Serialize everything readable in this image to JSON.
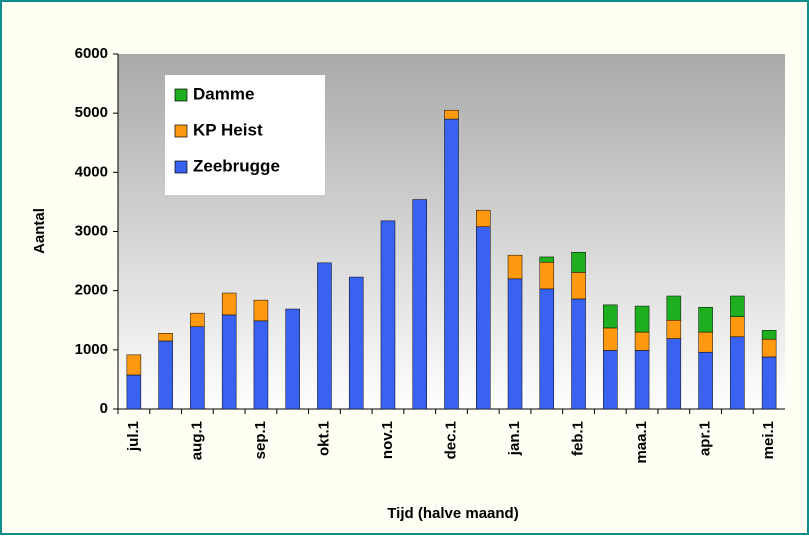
{
  "chart_data": {
    "type": "stacked_bar",
    "ylabel": "Aantal",
    "xlabel": "Tijd (halve maand)",
    "categories": [
      "jul.1",
      null,
      "aug.1",
      null,
      "sep.1",
      null,
      "okt.1",
      null,
      "nov.1",
      null,
      "dec.1",
      null,
      "jan.1",
      null,
      "feb.1",
      null,
      "maa.1",
      null,
      "apr.1",
      null,
      "mei.1"
    ],
    "series": [
      {
        "name": "Zeebrugge",
        "color": "#3a62f0",
        "values": [
          575,
          1150,
          1390,
          1590,
          1490,
          1690,
          2470,
          2230,
          3180,
          3540,
          4900,
          3080,
          2200,
          2030,
          1860,
          990,
          990,
          1190,
          960,
          1220,
          880
        ]
      },
      {
        "name": "KP Heist",
        "color": "#ff9a10",
        "values": [
          340,
          130,
          230,
          370,
          350,
          0,
          0,
          0,
          0,
          0,
          150,
          280,
          400,
          450,
          450,
          380,
          310,
          310,
          340,
          340,
          300
        ]
      },
      {
        "name": "Damme",
        "color": "#1fae1f",
        "values": [
          0,
          0,
          0,
          0,
          0,
          0,
          0,
          0,
          0,
          0,
          0,
          0,
          0,
          90,
          340,
          390,
          440,
          410,
          420,
          350,
          150
        ]
      }
    ],
    "ylim": [
      0,
      6000
    ],
    "yticks": [
      0,
      1000,
      2000,
      3000,
      4000,
      5000,
      6000
    ],
    "legend": "upper left"
  }
}
